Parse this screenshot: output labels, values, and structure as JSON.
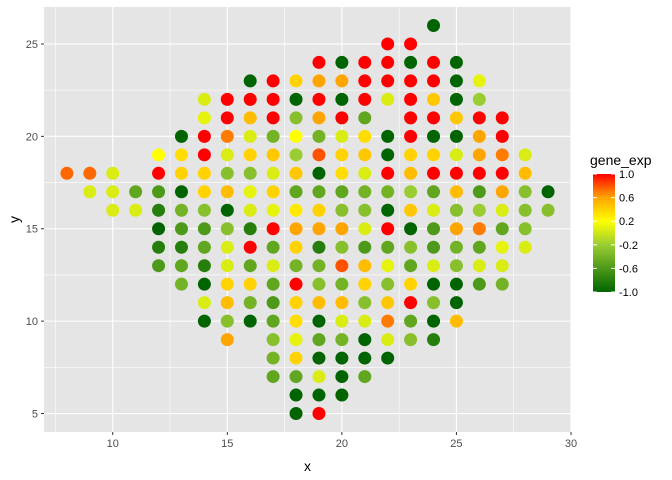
{
  "chart_data": {
    "type": "scatter",
    "title": "",
    "xlabel": "x",
    "ylabel": "y",
    "xlim": [
      7,
      30
    ],
    "ylim": [
      4,
      27
    ],
    "x_ticks": [
      "10",
      "15",
      "20",
      "25",
      "30"
    ],
    "x_tick_values": [
      10,
      15,
      20,
      25,
      30
    ],
    "y_ticks": [
      "5",
      "10",
      "15",
      "20",
      "25"
    ],
    "y_tick_values": [
      5,
      10,
      15,
      20,
      25
    ],
    "grid": true,
    "panel_background": "#e5e5e5",
    "grid_color": "#ffffff",
    "legend": {
      "title": "gene_exp",
      "placement": "right",
      "labels": [
        "1.0",
        "0.6",
        "0.2",
        "-0.2",
        "-0.6",
        "-1.0"
      ],
      "values": [
        1.0,
        0.6,
        0.2,
        -0.2,
        -0.6,
        -1.0
      ],
      "color_scale": [
        {
          "value": -1.0,
          "color": "#006400"
        },
        {
          "value": -0.2,
          "color": "#9acd32"
        },
        {
          "value": 0.2,
          "color": "#ffff00"
        },
        {
          "value": 0.6,
          "color": "#ffa500"
        },
        {
          "value": 1.0,
          "color": "#ff0000"
        }
      ]
    },
    "points": [
      {
        "x": 8,
        "y": 18,
        "v": 0.75
      },
      {
        "x": 9,
        "y": 17,
        "v": 0.05
      },
      {
        "x": 9,
        "y": 18,
        "v": 0.75
      },
      {
        "x": 10,
        "y": 16,
        "v": 0.05
      },
      {
        "x": 10,
        "y": 17,
        "v": 0.05
      },
      {
        "x": 10,
        "y": 18,
        "v": 0.05
      },
      {
        "x": 11,
        "y": 16,
        "v": 0.05
      },
      {
        "x": 11,
        "y": 17,
        "v": -0.5
      },
      {
        "x": 12,
        "y": 13,
        "v": -0.6
      },
      {
        "x": 12,
        "y": 14,
        "v": -0.8
      },
      {
        "x": 12,
        "y": 15,
        "v": -1.0
      },
      {
        "x": 12,
        "y": 16,
        "v": -0.8
      },
      {
        "x": 12,
        "y": 17,
        "v": -0.6
      },
      {
        "x": 12,
        "y": 18,
        "v": 1.0
      },
      {
        "x": 12,
        "y": 19,
        "v": 0.2
      },
      {
        "x": 13,
        "y": 12,
        "v": -0.4
      },
      {
        "x": 13,
        "y": 13,
        "v": -0.5
      },
      {
        "x": 13,
        "y": 14,
        "v": -0.8
      },
      {
        "x": 13,
        "y": 15,
        "v": -0.6
      },
      {
        "x": 13,
        "y": 16,
        "v": -0.4
      },
      {
        "x": 13,
        "y": 17,
        "v": -1.0
      },
      {
        "x": 13,
        "y": 18,
        "v": 0.4
      },
      {
        "x": 13,
        "y": 19,
        "v": 0.35
      },
      {
        "x": 13,
        "y": 20,
        "v": -1.0
      },
      {
        "x": 14,
        "y": 10,
        "v": -1.0
      },
      {
        "x": 14,
        "y": 11,
        "v": 0.05
      },
      {
        "x": 14,
        "y": 12,
        "v": -1.0
      },
      {
        "x": 14,
        "y": 13,
        "v": -0.8
      },
      {
        "x": 14,
        "y": 14,
        "v": -0.5
      },
      {
        "x": 14,
        "y": 15,
        "v": -0.6
      },
      {
        "x": 14,
        "y": 16,
        "v": -0.3
      },
      {
        "x": 14,
        "y": 17,
        "v": 0.4
      },
      {
        "x": 14,
        "y": 18,
        "v": 0.4
      },
      {
        "x": 14,
        "y": 19,
        "v": 1.0
      },
      {
        "x": 14,
        "y": 20,
        "v": 1.0
      },
      {
        "x": 14,
        "y": 21,
        "v": 0.1
      },
      {
        "x": 14,
        "y": 22,
        "v": 0.05
      },
      {
        "x": 15,
        "y": 9,
        "v": 0.6
      },
      {
        "x": 15,
        "y": 10,
        "v": -0.3
      },
      {
        "x": 15,
        "y": 11,
        "v": 0.5
      },
      {
        "x": 15,
        "y": 12,
        "v": 0.4
      },
      {
        "x": 15,
        "y": 13,
        "v": 0.05
      },
      {
        "x": 15,
        "y": 14,
        "v": 0.05
      },
      {
        "x": 15,
        "y": 15,
        "v": -0.3
      },
      {
        "x": 15,
        "y": 16,
        "v": -1.0
      },
      {
        "x": 15,
        "y": 17,
        "v": 0.5
      },
      {
        "x": 15,
        "y": 18,
        "v": -0.3
      },
      {
        "x": 15,
        "y": 19,
        "v": 0.05
      },
      {
        "x": 15,
        "y": 20,
        "v": 0.7
      },
      {
        "x": 15,
        "y": 21,
        "v": 1.0
      },
      {
        "x": 15,
        "y": 22,
        "v": 1.0
      },
      {
        "x": 16,
        "y": 10,
        "v": -1.0
      },
      {
        "x": 16,
        "y": 11,
        "v": -0.4
      },
      {
        "x": 16,
        "y": 12,
        "v": 0.4
      },
      {
        "x": 16,
        "y": 13,
        "v": -0.5
      },
      {
        "x": 16,
        "y": 14,
        "v": 1.0
      },
      {
        "x": 16,
        "y": 15,
        "v": -0.8
      },
      {
        "x": 16,
        "y": 16,
        "v": 0.05
      },
      {
        "x": 16,
        "y": 17,
        "v": 0.1
      },
      {
        "x": 16,
        "y": 18,
        "v": -0.3
      },
      {
        "x": 16,
        "y": 19,
        "v": 0.4
      },
      {
        "x": 16,
        "y": 20,
        "v": 0.05
      },
      {
        "x": 16,
        "y": 21,
        "v": 0.5
      },
      {
        "x": 16,
        "y": 22,
        "v": 1.0
      },
      {
        "x": 16,
        "y": 23,
        "v": -1.0
      },
      {
        "x": 17,
        "y": 7,
        "v": -0.5
      },
      {
        "x": 17,
        "y": 8,
        "v": -0.4
      },
      {
        "x": 17,
        "y": 9,
        "v": -0.3
      },
      {
        "x": 17,
        "y": 10,
        "v": -0.5
      },
      {
        "x": 17,
        "y": 11,
        "v": -0.6
      },
      {
        "x": 17,
        "y": 12,
        "v": -0.5
      },
      {
        "x": 17,
        "y": 13,
        "v": 0.05
      },
      {
        "x": 17,
        "y": 14,
        "v": -0.5
      },
      {
        "x": 17,
        "y": 15,
        "v": 1.0
      },
      {
        "x": 17,
        "y": 16,
        "v": 0.1
      },
      {
        "x": 17,
        "y": 17,
        "v": 0.4
      },
      {
        "x": 17,
        "y": 18,
        "v": 0.05
      },
      {
        "x": 17,
        "y": 19,
        "v": 0.45
      },
      {
        "x": 17,
        "y": 20,
        "v": -0.4
      },
      {
        "x": 17,
        "y": 21,
        "v": 1.0
      },
      {
        "x": 17,
        "y": 22,
        "v": 1.0
      },
      {
        "x": 17,
        "y": 23,
        "v": 1.0
      },
      {
        "x": 18,
        "y": 5,
        "v": -1.0
      },
      {
        "x": 18,
        "y": 6,
        "v": -1.0
      },
      {
        "x": 18,
        "y": 7,
        "v": -0.5
      },
      {
        "x": 18,
        "y": 8,
        "v": 0.4
      },
      {
        "x": 18,
        "y": 9,
        "v": 0.1
      },
      {
        "x": 18,
        "y": 10,
        "v": 0.35
      },
      {
        "x": 18,
        "y": 11,
        "v": 0.4
      },
      {
        "x": 18,
        "y": 12,
        "v": 1.0
      },
      {
        "x": 18,
        "y": 13,
        "v": -0.4
      },
      {
        "x": 18,
        "y": 14,
        "v": 0.4
      },
      {
        "x": 18,
        "y": 15,
        "v": 0.6
      },
      {
        "x": 18,
        "y": 16,
        "v": 0.3
      },
      {
        "x": 18,
        "y": 17,
        "v": -0.5
      },
      {
        "x": 18,
        "y": 18,
        "v": 0.45
      },
      {
        "x": 18,
        "y": 19,
        "v": -0.2
      },
      {
        "x": 18,
        "y": 20,
        "v": 0.2
      },
      {
        "x": 18,
        "y": 21,
        "v": -0.3
      },
      {
        "x": 18,
        "y": 22,
        "v": -1.0
      },
      {
        "x": 18,
        "y": 23,
        "v": 0.4
      },
      {
        "x": 19,
        "y": 5,
        "v": 1.0
      },
      {
        "x": 19,
        "y": 6,
        "v": -1.0
      },
      {
        "x": 19,
        "y": 7,
        "v": 0.05
      },
      {
        "x": 19,
        "y": 8,
        "v": -1.0
      },
      {
        "x": 19,
        "y": 9,
        "v": -0.5
      },
      {
        "x": 19,
        "y": 10,
        "v": -1.0
      },
      {
        "x": 19,
        "y": 11,
        "v": 0.5
      },
      {
        "x": 19,
        "y": 12,
        "v": -0.3
      },
      {
        "x": 19,
        "y": 13,
        "v": -0.4
      },
      {
        "x": 19,
        "y": 14,
        "v": -0.8
      },
      {
        "x": 19,
        "y": 15,
        "v": 0.6
      },
      {
        "x": 19,
        "y": 16,
        "v": 0.4
      },
      {
        "x": 19,
        "y": 17,
        "v": -0.5
      },
      {
        "x": 19,
        "y": 18,
        "v": -1.0
      },
      {
        "x": 19,
        "y": 19,
        "v": 0.8
      },
      {
        "x": 19,
        "y": 20,
        "v": -0.4
      },
      {
        "x": 19,
        "y": 21,
        "v": 0.6
      },
      {
        "x": 19,
        "y": 22,
        "v": 1.0
      },
      {
        "x": 19,
        "y": 23,
        "v": 0.6
      },
      {
        "x": 19,
        "y": 24,
        "v": 1.0
      },
      {
        "x": 20,
        "y": 6,
        "v": -1.0
      },
      {
        "x": 20,
        "y": 7,
        "v": -1.0
      },
      {
        "x": 20,
        "y": 8,
        "v": -1.0
      },
      {
        "x": 20,
        "y": 9,
        "v": -0.4
      },
      {
        "x": 20,
        "y": 10,
        "v": 0.05
      },
      {
        "x": 20,
        "y": 11,
        "v": 0.5
      },
      {
        "x": 20,
        "y": 12,
        "v": -0.4
      },
      {
        "x": 20,
        "y": 13,
        "v": 0.8
      },
      {
        "x": 20,
        "y": 14,
        "v": -0.3
      },
      {
        "x": 20,
        "y": 15,
        "v": 0.6
      },
      {
        "x": 20,
        "y": 16,
        "v": -0.3
      },
      {
        "x": 20,
        "y": 17,
        "v": -0.5
      },
      {
        "x": 20,
        "y": 18,
        "v": 0.35
      },
      {
        "x": 20,
        "y": 19,
        "v": 0.4
      },
      {
        "x": 20,
        "y": 20,
        "v": 0.05
      },
      {
        "x": 20,
        "y": 21,
        "v": 1.0
      },
      {
        "x": 20,
        "y": 22,
        "v": -1.0
      },
      {
        "x": 20,
        "y": 23,
        "v": 0.6
      },
      {
        "x": 20,
        "y": 24,
        "v": -1.0
      },
      {
        "x": 21,
        "y": 7,
        "v": -0.5
      },
      {
        "x": 21,
        "y": 8,
        "v": -1.0
      },
      {
        "x": 21,
        "y": 9,
        "v": -1.0
      },
      {
        "x": 21,
        "y": 10,
        "v": 0.05
      },
      {
        "x": 21,
        "y": 11,
        "v": -0.3
      },
      {
        "x": 21,
        "y": 12,
        "v": 0.4
      },
      {
        "x": 21,
        "y": 13,
        "v": 0.5
      },
      {
        "x": 21,
        "y": 14,
        "v": -0.6
      },
      {
        "x": 21,
        "y": 15,
        "v": 0.05
      },
      {
        "x": 21,
        "y": 16,
        "v": -0.3
      },
      {
        "x": 21,
        "y": 17,
        "v": -0.4
      },
      {
        "x": 21,
        "y": 18,
        "v": 0.05
      },
      {
        "x": 21,
        "y": 19,
        "v": 0.45
      },
      {
        "x": 21,
        "y": 20,
        "v": 0.35
      },
      {
        "x": 21,
        "y": 21,
        "v": -0.5
      },
      {
        "x": 21,
        "y": 22,
        "v": 1.0
      },
      {
        "x": 21,
        "y": 23,
        "v": 1.0
      },
      {
        "x": 21,
        "y": 24,
        "v": 1.0
      },
      {
        "x": 22,
        "y": 8,
        "v": -1.0
      },
      {
        "x": 22,
        "y": 9,
        "v": 0.05
      },
      {
        "x": 22,
        "y": 10,
        "v": 0.7
      },
      {
        "x": 22,
        "y": 11,
        "v": 0.45
      },
      {
        "x": 22,
        "y": 12,
        "v": -0.3
      },
      {
        "x": 22,
        "y": 13,
        "v": 0.1
      },
      {
        "x": 22,
        "y": 14,
        "v": -0.5
      },
      {
        "x": 22,
        "y": 15,
        "v": 1.0
      },
      {
        "x": 22,
        "y": 16,
        "v": -1.0
      },
      {
        "x": 22,
        "y": 17,
        "v": -0.4
      },
      {
        "x": 22,
        "y": 18,
        "v": 1.0
      },
      {
        "x": 22,
        "y": 19,
        "v": -1.0
      },
      {
        "x": 22,
        "y": 20,
        "v": -1.0
      },
      {
        "x": 22,
        "y": 22,
        "v": 0.05
      },
      {
        "x": 22,
        "y": 23,
        "v": 1.0
      },
      {
        "x": 22,
        "y": 24,
        "v": 1.0
      },
      {
        "x": 22,
        "y": 25,
        "v": 1.0
      },
      {
        "x": 23,
        "y": 9,
        "v": -0.3
      },
      {
        "x": 23,
        "y": 10,
        "v": -0.5
      },
      {
        "x": 23,
        "y": 11,
        "v": 1.0
      },
      {
        "x": 23,
        "y": 12,
        "v": 0.4
      },
      {
        "x": 23,
        "y": 13,
        "v": -0.5
      },
      {
        "x": 23,
        "y": 14,
        "v": -0.3
      },
      {
        "x": 23,
        "y": 15,
        "v": -1.0
      },
      {
        "x": 23,
        "y": 16,
        "v": 0.45
      },
      {
        "x": 23,
        "y": 17,
        "v": -0.2
      },
      {
        "x": 23,
        "y": 18,
        "v": 0.5
      },
      {
        "x": 23,
        "y": 19,
        "v": 0.4
      },
      {
        "x": 23,
        "y": 20,
        "v": 1.0
      },
      {
        "x": 23,
        "y": 21,
        "v": 1.0
      },
      {
        "x": 23,
        "y": 22,
        "v": 1.0
      },
      {
        "x": 23,
        "y": 23,
        "v": 1.0
      },
      {
        "x": 23,
        "y": 24,
        "v": -1.0
      },
      {
        "x": 23,
        "y": 25,
        "v": 1.0
      },
      {
        "x": 24,
        "y": 9,
        "v": -0.8
      },
      {
        "x": 24,
        "y": 10,
        "v": -1.0
      },
      {
        "x": 24,
        "y": 11,
        "v": -0.3
      },
      {
        "x": 24,
        "y": 12,
        "v": -1.0
      },
      {
        "x": 24,
        "y": 13,
        "v": 0.05
      },
      {
        "x": 24,
        "y": 14,
        "v": -0.6
      },
      {
        "x": 24,
        "y": 15,
        "v": -0.6
      },
      {
        "x": 24,
        "y": 16,
        "v": 0.05
      },
      {
        "x": 24,
        "y": 17,
        "v": -0.5
      },
      {
        "x": 24,
        "y": 18,
        "v": 1.0
      },
      {
        "x": 24,
        "y": 19,
        "v": 0.4
      },
      {
        "x": 24,
        "y": 20,
        "v": -1.0
      },
      {
        "x": 24,
        "y": 21,
        "v": 1.0
      },
      {
        "x": 24,
        "y": 22,
        "v": 0.45
      },
      {
        "x": 24,
        "y": 23,
        "v": 1.0
      },
      {
        "x": 24,
        "y": 24,
        "v": 1.0
      },
      {
        "x": 24,
        "y": 26,
        "v": -1.0
      },
      {
        "x": 25,
        "y": 10,
        "v": 0.5
      },
      {
        "x": 25,
        "y": 11,
        "v": -1.0
      },
      {
        "x": 25,
        "y": 12,
        "v": -1.0
      },
      {
        "x": 25,
        "y": 13,
        "v": -0.3
      },
      {
        "x": 25,
        "y": 14,
        "v": -0.4
      },
      {
        "x": 25,
        "y": 15,
        "v": 0.6
      },
      {
        "x": 25,
        "y": 16,
        "v": -0.3
      },
      {
        "x": 25,
        "y": 17,
        "v": 0.5
      },
      {
        "x": 25,
        "y": 18,
        "v": 1.0
      },
      {
        "x": 25,
        "y": 19,
        "v": 0.05
      },
      {
        "x": 25,
        "y": 20,
        "v": -1.0
      },
      {
        "x": 25,
        "y": 21,
        "v": 0.45
      },
      {
        "x": 25,
        "y": 22,
        "v": -1.0
      },
      {
        "x": 25,
        "y": 23,
        "v": -1.0
      },
      {
        "x": 25,
        "y": 24,
        "v": -1.0
      },
      {
        "x": 26,
        "y": 12,
        "v": -0.6
      },
      {
        "x": 26,
        "y": 13,
        "v": 0.05
      },
      {
        "x": 26,
        "y": 14,
        "v": -0.5
      },
      {
        "x": 26,
        "y": 15,
        "v": 0.7
      },
      {
        "x": 26,
        "y": 16,
        "v": -0.2
      },
      {
        "x": 26,
        "y": 17,
        "v": -0.6
      },
      {
        "x": 26,
        "y": 18,
        "v": 1.0
      },
      {
        "x": 26,
        "y": 19,
        "v": 0.6
      },
      {
        "x": 26,
        "y": 20,
        "v": 0.6
      },
      {
        "x": 26,
        "y": 21,
        "v": 1.0
      },
      {
        "x": 26,
        "y": 22,
        "v": -0.2
      },
      {
        "x": 26,
        "y": 23,
        "v": 0.1
      },
      {
        "x": 27,
        "y": 12,
        "v": -0.4
      },
      {
        "x": 27,
        "y": 13,
        "v": 0.05
      },
      {
        "x": 27,
        "y": 14,
        "v": 0.1
      },
      {
        "x": 27,
        "y": 15,
        "v": -0.5
      },
      {
        "x": 27,
        "y": 16,
        "v": 0.05
      },
      {
        "x": 27,
        "y": 17,
        "v": 0.6
      },
      {
        "x": 27,
        "y": 18,
        "v": 1.0
      },
      {
        "x": 27,
        "y": 19,
        "v": 0.7
      },
      {
        "x": 27,
        "y": 20,
        "v": 1.0
      },
      {
        "x": 27,
        "y": 21,
        "v": 1.0
      },
      {
        "x": 28,
        "y": 14,
        "v": 0.05
      },
      {
        "x": 28,
        "y": 15,
        "v": -0.3
      },
      {
        "x": 28,
        "y": 16,
        "v": -0.3
      },
      {
        "x": 28,
        "y": 17,
        "v": -0.3
      },
      {
        "x": 28,
        "y": 18,
        "v": 0.5
      },
      {
        "x": 28,
        "y": 19,
        "v": 0.05
      },
      {
        "x": 29,
        "y": 16,
        "v": -0.3
      },
      {
        "x": 29,
        "y": 17,
        "v": -1.0
      }
    ]
  }
}
